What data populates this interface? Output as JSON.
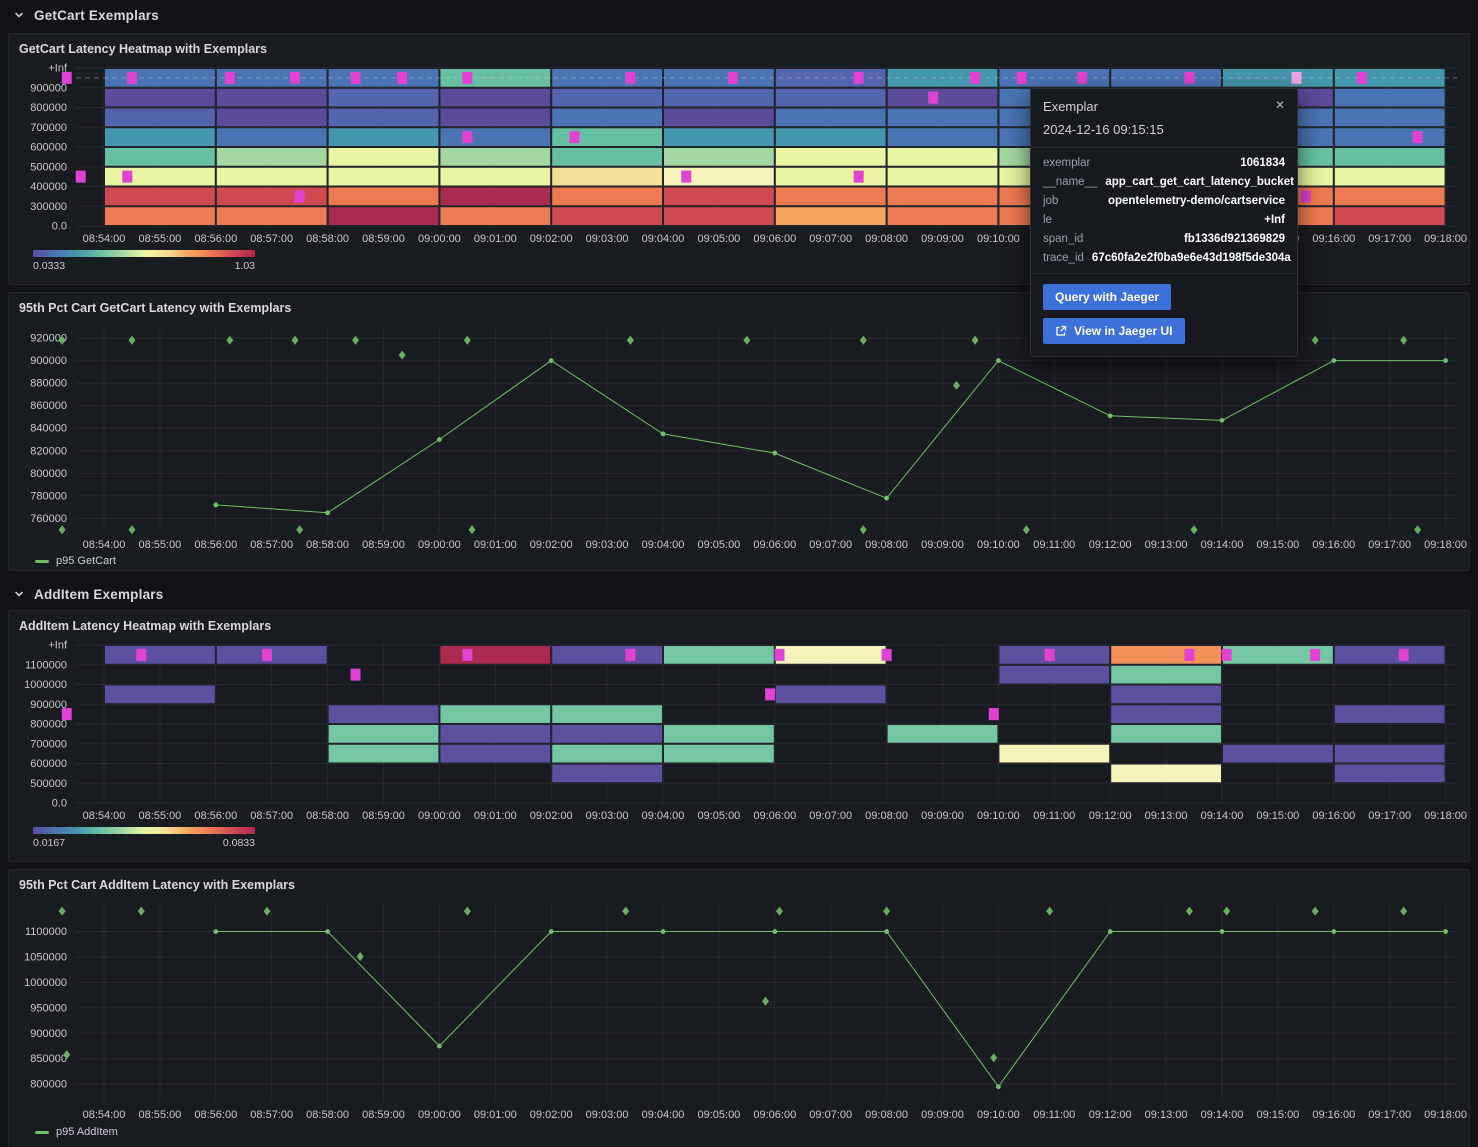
{
  "sections": [
    {
      "title": "GetCart Exemplars"
    },
    {
      "title": "AddItem Exemplars"
    }
  ],
  "panels": [
    {
      "title": "GetCart Latency Heatmap with Exemplars"
    },
    {
      "title": "95th Pct Cart GetCart Latency with Exemplars",
      "legend": "p95 GetCart"
    },
    {
      "title": "AddItem Latency Heatmap with Exemplars"
    },
    {
      "title": "95th Pct Cart AddItem Latency with Exemplars",
      "legend": "p95 AddItem"
    }
  ],
  "tooltip": {
    "title": "Exemplar",
    "timestamp": "2024-12-16 09:15:15",
    "close_icon": "✕",
    "fields": [
      {
        "label": "exemplar",
        "value": "1061834"
      },
      {
        "label": "__name__",
        "value": "app_cart_get_cart_latency_bucket"
      },
      {
        "label": "job",
        "value": "opentelemetry-demo/cartservice"
      },
      {
        "label": "le",
        "value": "+Inf"
      },
      {
        "label": "span_id",
        "value": "fb1336d921369829"
      },
      {
        "label": "trace_id",
        "value": "67c60fa2e2f0ba9e6e43d198f5de304a"
      }
    ],
    "buttons": [
      {
        "label": "Query with Jaeger"
      },
      {
        "label": "View in Jaeger UI"
      }
    ]
  },
  "colors": {
    "page_bg": "#111217",
    "panel_bg": "#181b20",
    "line_green": "#73bf69",
    "exemplar_magenta": "#e242d3",
    "exemplar_highlight": "#f0a6e4",
    "button_blue": "#3d71d9",
    "tick_text": "#c8c9cf"
  },
  "chart_data": [
    {
      "type": "heatmap",
      "title": "GetCart Latency Heatmap with Exemplars",
      "y_tick_labels": [
        "+Inf",
        "900000",
        "800000",
        "700000",
        "600000",
        "500000",
        "400000",
        "300000",
        "0.0"
      ],
      "x_ticks": [
        "08:54:00",
        "08:55:00",
        "08:56:00",
        "08:57:00",
        "08:58:00",
        "08:59:00",
        "09:00:00",
        "09:01:00",
        "09:02:00",
        "09:03:00",
        "09:04:00",
        "09:05:00",
        "09:06:00",
        "09:07:00",
        "09:08:00",
        "09:09:00",
        "09:10:00",
        "09:11:00",
        "09:12:00",
        "09:13:00",
        "09:14:00",
        "09:15:00",
        "09:16:00",
        "09:17:00",
        "09:18:00"
      ],
      "bucket_size_minutes": 2,
      "palette": {
        "P": "#5c4a9b",
        "I": "#5365ae",
        "B": "#4a74b4",
        "T": "#4597ad",
        "G": "#68c0a3",
        "L": "#a3d7a2",
        "Y": "#e9f5a2",
        "W": "#f7f3bd",
        "C": "#f5df96",
        "O": "#f5a55c",
        "R": "#ee7a52",
        "D": "#d04a52",
        "K": "#ab2a50"
      },
      "columns": [
        {
          "start": "08:54:00",
          "cells": [
            "B",
            "P",
            "I",
            "T",
            "G",
            "Y",
            "D",
            "R"
          ]
        },
        {
          "start": "08:56:00",
          "cells": [
            "B",
            "P",
            "P",
            "B",
            "L",
            "Y",
            "D",
            "R"
          ]
        },
        {
          "start": "08:58:00",
          "cells": [
            "B",
            "I",
            "I",
            "T",
            "Y",
            "Y",
            "R",
            "K"
          ]
        },
        {
          "start": "09:00:00",
          "cells": [
            "G",
            "P",
            "P",
            "B",
            "L",
            "Y",
            "K",
            "R"
          ]
        },
        {
          "start": "09:02:00",
          "cells": [
            "B",
            "I",
            "B",
            "G",
            "G",
            "C",
            "R",
            "D"
          ]
        },
        {
          "start": "09:04:00",
          "cells": [
            "B",
            "I",
            "P",
            "T",
            "L",
            "W",
            "D",
            "D"
          ]
        },
        {
          "start": "09:06:00",
          "cells": [
            "I",
            "I",
            "B",
            "T",
            "Y",
            "Y",
            "R",
            "O"
          ]
        },
        {
          "start": "09:08:00",
          "cells": [
            "T",
            "P",
            "B",
            "B",
            "Y",
            "Y",
            "R",
            "R"
          ]
        },
        {
          "start": "09:10:00",
          "cells": [
            "B",
            "B",
            "B",
            "B",
            "L",
            "Y",
            "R",
            "R"
          ]
        },
        {
          "start": "09:12:00",
          "cells": [
            "B",
            "I",
            "I",
            "B",
            "G",
            "Y",
            "R",
            "D"
          ]
        },
        {
          "start": "09:14:00",
          "cells": [
            "T",
            "P",
            "B",
            "B",
            "G",
            "Y",
            "R",
            "R"
          ]
        },
        {
          "start": "09:16:00",
          "cells": [
            "T",
            "B",
            "B",
            "B",
            "G",
            "Y",
            "R",
            "D"
          ]
        }
      ],
      "exemplars": [
        {
          "time": "08:53:20",
          "row": 0
        },
        {
          "time": "08:54:30",
          "row": 0
        },
        {
          "time": "08:56:15",
          "row": 0
        },
        {
          "time": "08:57:25",
          "row": 0
        },
        {
          "time": "08:58:30",
          "row": 0
        },
        {
          "time": "08:59:20",
          "row": 0
        },
        {
          "time": "09:00:30",
          "row": 0
        },
        {
          "time": "09:03:25",
          "row": 0
        },
        {
          "time": "09:05:15",
          "row": 0
        },
        {
          "time": "09:07:30",
          "row": 0
        },
        {
          "time": "09:09:35",
          "row": 0
        },
        {
          "time": "09:10:25",
          "row": 0
        },
        {
          "time": "09:11:30",
          "row": 0
        },
        {
          "time": "09:13:25",
          "row": 0
        },
        {
          "time": "09:15:20",
          "row": 0,
          "highlight": true
        },
        {
          "time": "09:16:30",
          "row": 0
        },
        {
          "time": "09:08:50",
          "row": 1
        },
        {
          "time": "09:00:30",
          "row": 3
        },
        {
          "time": "09:02:25",
          "row": 3
        },
        {
          "time": "09:17:30",
          "row": 3
        },
        {
          "time": "08:53:35",
          "row": 5
        },
        {
          "time": "08:54:25",
          "row": 5
        },
        {
          "time": "09:04:25",
          "row": 5
        },
        {
          "time": "09:07:30",
          "row": 5
        },
        {
          "time": "08:57:30",
          "row": 6
        },
        {
          "time": "09:15:30",
          "row": 6
        }
      ],
      "crosshair_row": 0,
      "scale": {
        "min_label": "0.0333",
        "max_label": "1.03"
      },
      "scale_gradient": [
        "#5c4a9b",
        "#4a74b4",
        "#4597ad",
        "#68c0a3",
        "#a3d7a2",
        "#e9f5a2",
        "#f5df96",
        "#f5a55c",
        "#ee7a52",
        "#d04a52",
        "#b3254e"
      ]
    },
    {
      "type": "line",
      "title": "95th Pct Cart GetCart Latency with Exemplars",
      "legend": "p95 GetCart",
      "series": [
        {
          "name": "p95 GetCart",
          "color": "#73bf69",
          "x": [
            "08:56:00",
            "08:58:00",
            "09:00:00",
            "09:02:00",
            "09:04:00",
            "09:06:00",
            "09:08:00",
            "09:10:00",
            "09:12:00",
            "09:14:00",
            "09:16:00",
            "09:18:00"
          ],
          "y": [
            772000,
            765000,
            830000,
            900000,
            835000,
            818000,
            778000,
            900000,
            851000,
            847000,
            900000,
            900000
          ]
        }
      ],
      "y_ticks": [
        760000,
        780000,
        800000,
        820000,
        840000,
        860000,
        880000,
        900000,
        920000
      ],
      "ylim": [
        748000,
        928000
      ],
      "x_ticks": [
        "08:54:00",
        "08:55:00",
        "08:56:00",
        "08:57:00",
        "08:58:00",
        "08:59:00",
        "09:00:00",
        "09:01:00",
        "09:02:00",
        "09:03:00",
        "09:04:00",
        "09:05:00",
        "09:06:00",
        "09:07:00",
        "09:08:00",
        "09:09:00",
        "09:10:00",
        "09:11:00",
        "09:12:00",
        "09:13:00",
        "09:14:00",
        "09:15:00",
        "09:16:00",
        "09:17:00",
        "09:18:00"
      ],
      "exemplars": [
        {
          "time": "08:53:15",
          "value": 918000
        },
        {
          "time": "08:54:30",
          "value": 918000
        },
        {
          "time": "08:56:15",
          "value": 918000
        },
        {
          "time": "08:57:25",
          "value": 918000
        },
        {
          "time": "08:58:30",
          "value": 918000
        },
        {
          "time": "09:00:30",
          "value": 918000
        },
        {
          "time": "09:03:25",
          "value": 918000
        },
        {
          "time": "09:05:30",
          "value": 918000
        },
        {
          "time": "09:07:35",
          "value": 918000
        },
        {
          "time": "09:09:35",
          "value": 918000
        },
        {
          "time": "09:13:30",
          "value": 918000
        },
        {
          "time": "09:14:10",
          "value": 918000
        },
        {
          "time": "09:15:40",
          "value": 918000
        },
        {
          "time": "09:17:15",
          "value": 918000
        },
        {
          "time": "08:59:20",
          "value": 905000
        },
        {
          "time": "09:09:15",
          "value": 878000
        },
        {
          "time": "08:53:15",
          "value": 750000
        },
        {
          "time": "08:54:30",
          "value": 750000
        },
        {
          "time": "08:57:30",
          "value": 750000
        },
        {
          "time": "09:00:35",
          "value": 750000
        },
        {
          "time": "09:07:35",
          "value": 750000
        },
        {
          "time": "09:10:30",
          "value": 750000
        },
        {
          "time": "09:13:30",
          "value": 750000
        },
        {
          "time": "09:17:30",
          "value": 750000
        }
      ]
    },
    {
      "type": "heatmap",
      "title": "AddItem Latency Heatmap with Exemplars",
      "y_tick_labels": [
        "+Inf",
        "1100000",
        "1000000",
        "900000",
        "800000",
        "700000",
        "600000",
        "500000",
        "0.0"
      ],
      "x_ticks": [
        "08:54:00",
        "08:55:00",
        "08:56:00",
        "08:57:00",
        "08:58:00",
        "08:59:00",
        "09:00:00",
        "09:01:00",
        "09:02:00",
        "09:03:00",
        "09:04:00",
        "09:05:00",
        "09:06:00",
        "09:07:00",
        "09:08:00",
        "09:09:00",
        "09:10:00",
        "09:11:00",
        "09:12:00",
        "09:13:00",
        "09:14:00",
        "09:15:00",
        "09:16:00",
        "09:17:00",
        "09:18:00"
      ],
      "bucket_size_minutes": 2,
      "palette": {
        "P": "#5d50a0",
        "G": "#74c7a2",
        "W": "#f7f3bd",
        "O": "#f2925a",
        "K": "#ab2a50"
      },
      "columns": [
        {
          "start": "08:54:00",
          "cells": [
            "P",
            null,
            "P",
            null,
            null,
            null,
            null,
            null
          ]
        },
        {
          "start": "08:56:00",
          "cells": [
            "P",
            null,
            null,
            null,
            null,
            null,
            null,
            null
          ]
        },
        {
          "start": "08:58:00",
          "cells": [
            null,
            null,
            null,
            "P",
            "G",
            "G",
            null,
            null
          ]
        },
        {
          "start": "09:00:00",
          "cells": [
            "K",
            null,
            null,
            "G",
            "P",
            "P",
            null,
            null
          ]
        },
        {
          "start": "09:02:00",
          "cells": [
            "P",
            null,
            null,
            "G",
            "P",
            "G",
            "P",
            null
          ]
        },
        {
          "start": "09:04:00",
          "cells": [
            "G",
            null,
            null,
            null,
            "G",
            "G",
            null,
            null
          ]
        },
        {
          "start": "09:06:00",
          "cells": [
            "W",
            null,
            "P",
            null,
            null,
            null,
            null,
            null
          ]
        },
        {
          "start": "09:08:00",
          "cells": [
            null,
            null,
            null,
            null,
            "G",
            null,
            null,
            null
          ]
        },
        {
          "start": "09:10:00",
          "cells": [
            "P",
            "P",
            null,
            null,
            null,
            "W",
            null,
            null
          ]
        },
        {
          "start": "09:12:00",
          "cells": [
            "O",
            "G",
            "P",
            "P",
            "G",
            null,
            "W",
            null
          ]
        },
        {
          "start": "09:14:00",
          "cells": [
            "G",
            null,
            null,
            null,
            null,
            "P",
            null,
            null
          ]
        },
        {
          "start": "09:16:00",
          "cells": [
            "P",
            null,
            null,
            "P",
            null,
            "P",
            "P",
            null
          ]
        }
      ],
      "exemplars": [
        {
          "time": "08:54:40",
          "row": 0
        },
        {
          "time": "08:56:55",
          "row": 0
        },
        {
          "time": "09:00:30",
          "row": 0
        },
        {
          "time": "09:03:25",
          "row": 0
        },
        {
          "time": "09:06:05",
          "row": 0
        },
        {
          "time": "09:08:00",
          "row": 0
        },
        {
          "time": "09:10:55",
          "row": 0
        },
        {
          "time": "09:13:25",
          "row": 0
        },
        {
          "time": "09:14:05",
          "row": 0
        },
        {
          "time": "09:15:40",
          "row": 0
        },
        {
          "time": "09:17:15",
          "row": 0
        },
        {
          "time": "08:58:30",
          "row": 1
        },
        {
          "time": "09:05:55",
          "row": 2
        },
        {
          "time": "08:53:20",
          "row": 3
        },
        {
          "time": "09:09:55",
          "row": 3
        }
      ],
      "crosshair_row": null,
      "scale": {
        "min_label": "0.0167",
        "max_label": "0.0833"
      },
      "scale_gradient": [
        "#5c4a9b",
        "#4a74b4",
        "#4597ad",
        "#68c0a3",
        "#a3d7a2",
        "#e9f5a2",
        "#f5df96",
        "#f5a55c",
        "#ee7a52",
        "#d04a52",
        "#b3254e"
      ]
    },
    {
      "type": "line",
      "title": "95th Pct Cart AddItem Latency with Exemplars",
      "legend": "p95 AddItem",
      "series": [
        {
          "name": "p95 AddItem",
          "color": "#73bf69",
          "x": [
            "08:56:00",
            "08:58:00",
            "09:00:00",
            "09:02:00",
            "09:04:00",
            "09:06:00",
            "09:08:00",
            "09:10:00",
            "09:12:00",
            "09:14:00",
            "09:16:00",
            "09:18:00"
          ],
          "y": [
            1100000,
            1100000,
            875000,
            1100000,
            1100000,
            1100000,
            1100000,
            795000,
            1100000,
            1100000,
            1100000,
            1100000
          ]
        }
      ],
      "y_ticks": [
        800000,
        850000,
        900000,
        950000,
        1000000,
        1050000,
        1100000
      ],
      "ylim": [
        765000,
        1158000
      ],
      "x_ticks": [
        "08:54:00",
        "08:55:00",
        "08:56:00",
        "08:57:00",
        "08:58:00",
        "08:59:00",
        "09:00:00",
        "09:01:00",
        "09:02:00",
        "09:03:00",
        "09:04:00",
        "09:05:00",
        "09:06:00",
        "09:07:00",
        "09:08:00",
        "09:09:00",
        "09:10:00",
        "09:11:00",
        "09:12:00",
        "09:13:00",
        "09:14:00",
        "09:15:00",
        "09:16:00",
        "09:17:00",
        "09:18:00"
      ],
      "exemplars": [
        {
          "time": "08:53:15",
          "value": 1140000
        },
        {
          "time": "08:54:40",
          "value": 1140000
        },
        {
          "time": "08:56:55",
          "value": 1140000
        },
        {
          "time": "09:00:30",
          "value": 1140000
        },
        {
          "time": "09:03:20",
          "value": 1140000
        },
        {
          "time": "09:06:05",
          "value": 1140000
        },
        {
          "time": "09:08:00",
          "value": 1140000
        },
        {
          "time": "09:10:55",
          "value": 1140000
        },
        {
          "time": "09:13:25",
          "value": 1140000
        },
        {
          "time": "09:14:05",
          "value": 1140000
        },
        {
          "time": "09:15:40",
          "value": 1140000
        },
        {
          "time": "09:17:15",
          "value": 1140000
        },
        {
          "time": "08:58:35",
          "value": 1051000
        },
        {
          "time": "09:05:50",
          "value": 963000
        },
        {
          "time": "09:09:55",
          "value": 852000
        },
        {
          "time": "08:53:20",
          "value": 858000
        }
      ]
    }
  ]
}
